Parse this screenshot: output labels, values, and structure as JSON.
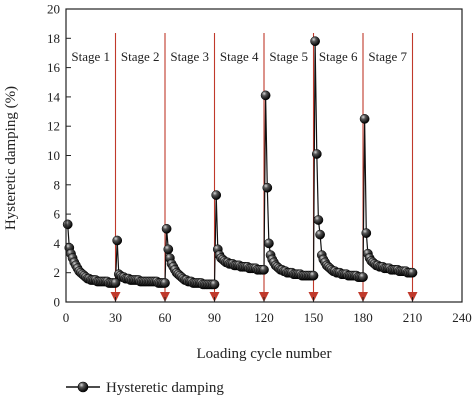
{
  "chart_data": {
    "type": "scatter",
    "xlabel": "Loading cycle number",
    "ylabel": "Hysteretic damping (%)",
    "xlim": [
      0,
      240
    ],
    "ylim": [
      0,
      20
    ],
    "xticks": [
      0,
      30,
      60,
      90,
      120,
      150,
      180,
      210,
      240
    ],
    "yticks": [
      0,
      2,
      4,
      6,
      8,
      10,
      12,
      14,
      16,
      18,
      20
    ],
    "grid": false,
    "legend_position": "bottom-left",
    "colors": {
      "series_fill": "#111111",
      "stage_line": "#c0392b",
      "axes": "#222222"
    },
    "stage_boundaries": [
      30,
      60,
      90,
      120,
      150,
      180,
      210
    ],
    "stages": [
      {
        "label": "Stage 1",
        "x_start": 0,
        "x_end": 30
      },
      {
        "label": "Stage 2",
        "x_start": 30,
        "x_end": 60
      },
      {
        "label": "Stage 3",
        "x_start": 60,
        "x_end": 90
      },
      {
        "label": "Stage 4",
        "x_start": 90,
        "x_end": 120
      },
      {
        "label": "Stage 5",
        "x_start": 120,
        "x_end": 150
      },
      {
        "label": "Stage 6",
        "x_start": 150,
        "x_end": 180
      },
      {
        "label": "Stage 7",
        "x_start": 180,
        "x_end": 210
      }
    ],
    "series": [
      {
        "name": "Hysteretic damping",
        "points": [
          [
            1,
            5.3
          ],
          [
            2,
            3.7
          ],
          [
            3,
            3.3
          ],
          [
            4,
            3.0
          ],
          [
            5,
            2.7
          ],
          [
            6,
            2.5
          ],
          [
            7,
            2.3
          ],
          [
            8,
            2.1
          ],
          [
            9,
            2.0
          ],
          [
            10,
            1.9
          ],
          [
            11,
            1.8
          ],
          [
            12,
            1.7
          ],
          [
            13,
            1.6
          ],
          [
            14,
            1.6
          ],
          [
            15,
            1.5
          ],
          [
            16,
            1.5
          ],
          [
            17,
            1.5
          ],
          [
            18,
            1.5
          ],
          [
            19,
            1.4
          ],
          [
            20,
            1.4
          ],
          [
            21,
            1.4
          ],
          [
            22,
            1.4
          ],
          [
            23,
            1.4
          ],
          [
            24,
            1.4
          ],
          [
            25,
            1.4
          ],
          [
            26,
            1.3
          ],
          [
            27,
            1.3
          ],
          [
            28,
            1.3
          ],
          [
            29,
            1.3
          ],
          [
            30,
            1.3
          ],
          [
            31,
            4.2
          ],
          [
            32,
            1.9
          ],
          [
            33,
            1.8
          ],
          [
            34,
            1.7
          ],
          [
            35,
            1.7
          ],
          [
            36,
            1.6
          ],
          [
            37,
            1.6
          ],
          [
            38,
            1.6
          ],
          [
            39,
            1.5
          ],
          [
            40,
            1.5
          ],
          [
            41,
            1.5
          ],
          [
            42,
            1.5
          ],
          [
            43,
            1.5
          ],
          [
            44,
            1.5
          ],
          [
            45,
            1.4
          ],
          [
            46,
            1.4
          ],
          [
            47,
            1.4
          ],
          [
            48,
            1.4
          ],
          [
            49,
            1.4
          ],
          [
            50,
            1.4
          ],
          [
            51,
            1.4
          ],
          [
            52,
            1.4
          ],
          [
            53,
            1.4
          ],
          [
            54,
            1.4
          ],
          [
            55,
            1.4
          ],
          [
            56,
            1.3
          ],
          [
            57,
            1.3
          ],
          [
            58,
            1.3
          ],
          [
            59,
            1.3
          ],
          [
            60,
            1.3
          ],
          [
            61,
            5.0
          ],
          [
            62,
            3.6
          ],
          [
            63,
            3.0
          ],
          [
            64,
            2.6
          ],
          [
            65,
            2.4
          ],
          [
            66,
            2.2
          ],
          [
            67,
            2.0
          ],
          [
            68,
            1.9
          ],
          [
            69,
            1.8
          ],
          [
            70,
            1.7
          ],
          [
            71,
            1.6
          ],
          [
            72,
            1.5
          ],
          [
            73,
            1.5
          ],
          [
            74,
            1.4
          ],
          [
            75,
            1.4
          ],
          [
            76,
            1.4
          ],
          [
            77,
            1.3
          ],
          [
            78,
            1.3
          ],
          [
            79,
            1.3
          ],
          [
            80,
            1.3
          ],
          [
            81,
            1.3
          ],
          [
            82,
            1.3
          ],
          [
            83,
            1.2
          ],
          [
            84,
            1.2
          ],
          [
            85,
            1.2
          ],
          [
            86,
            1.2
          ],
          [
            87,
            1.2
          ],
          [
            88,
            1.2
          ],
          [
            89,
            1.2
          ],
          [
            90,
            1.2
          ],
          [
            91,
            7.3
          ],
          [
            92,
            3.6
          ],
          [
            93,
            3.2
          ],
          [
            94,
            3.0
          ],
          [
            95,
            2.9
          ],
          [
            96,
            2.8
          ],
          [
            97,
            2.7
          ],
          [
            98,
            2.7
          ],
          [
            99,
            2.6
          ],
          [
            100,
            2.6
          ],
          [
            101,
            2.6
          ],
          [
            102,
            2.5
          ],
          [
            103,
            2.5
          ],
          [
            104,
            2.5
          ],
          [
            105,
            2.5
          ],
          [
            106,
            2.4
          ],
          [
            107,
            2.4
          ],
          [
            108,
            2.4
          ],
          [
            109,
            2.4
          ],
          [
            110,
            2.4
          ],
          [
            111,
            2.3
          ],
          [
            112,
            2.3
          ],
          [
            113,
            2.3
          ],
          [
            114,
            2.3
          ],
          [
            115,
            2.3
          ],
          [
            116,
            2.2
          ],
          [
            117,
            2.2
          ],
          [
            118,
            2.2
          ],
          [
            119,
            2.2
          ],
          [
            120,
            2.2
          ],
          [
            121,
            14.1
          ],
          [
            122,
            7.8
          ],
          [
            123,
            4.0
          ],
          [
            124,
            3.2
          ],
          [
            125,
            2.9
          ],
          [
            126,
            2.7
          ],
          [
            127,
            2.5
          ],
          [
            128,
            2.4
          ],
          [
            129,
            2.3
          ],
          [
            130,
            2.2
          ],
          [
            131,
            2.2
          ],
          [
            132,
            2.1
          ],
          [
            133,
            2.1
          ],
          [
            134,
            2.0
          ],
          [
            135,
            2.0
          ],
          [
            136,
            2.0
          ],
          [
            137,
            2.0
          ],
          [
            138,
            1.9
          ],
          [
            139,
            1.9
          ],
          [
            140,
            1.9
          ],
          [
            141,
            1.9
          ],
          [
            142,
            1.9
          ],
          [
            143,
            1.8
          ],
          [
            144,
            1.8
          ],
          [
            145,
            1.8
          ],
          [
            146,
            1.8
          ],
          [
            147,
            1.8
          ],
          [
            148,
            1.8
          ],
          [
            149,
            1.8
          ],
          [
            150,
            1.8
          ],
          [
            151,
            17.8
          ],
          [
            152,
            10.1
          ],
          [
            153,
            5.6
          ],
          [
            154,
            4.6
          ],
          [
            155,
            3.2
          ],
          [
            156,
            2.9
          ],
          [
            157,
            2.7
          ],
          [
            158,
            2.5
          ],
          [
            159,
            2.4
          ],
          [
            160,
            2.3
          ],
          [
            161,
            2.2
          ],
          [
            162,
            2.1
          ],
          [
            163,
            2.1
          ],
          [
            164,
            2.0
          ],
          [
            165,
            2.0
          ],
          [
            166,
            2.0
          ],
          [
            167,
            1.9
          ],
          [
            168,
            1.9
          ],
          [
            169,
            1.9
          ],
          [
            170,
            1.9
          ],
          [
            171,
            1.8
          ],
          [
            172,
            1.8
          ],
          [
            173,
            1.8
          ],
          [
            174,
            1.8
          ],
          [
            175,
            1.8
          ],
          [
            176,
            1.8
          ],
          [
            177,
            1.7
          ],
          [
            178,
            1.7
          ],
          [
            179,
            1.7
          ],
          [
            180,
            1.7
          ],
          [
            181,
            12.5
          ],
          [
            182,
            4.7
          ],
          [
            183,
            3.3
          ],
          [
            184,
            3.0
          ],
          [
            185,
            2.8
          ],
          [
            186,
            2.7
          ],
          [
            187,
            2.6
          ],
          [
            188,
            2.5
          ],
          [
            189,
            2.5
          ],
          [
            190,
            2.4
          ],
          [
            191,
            2.4
          ],
          [
            192,
            2.4
          ],
          [
            193,
            2.3
          ],
          [
            194,
            2.3
          ],
          [
            195,
            2.3
          ],
          [
            196,
            2.3
          ],
          [
            197,
            2.2
          ],
          [
            198,
            2.2
          ],
          [
            199,
            2.2
          ],
          [
            200,
            2.2
          ],
          [
            201,
            2.2
          ],
          [
            202,
            2.1
          ],
          [
            203,
            2.1
          ],
          [
            204,
            2.1
          ],
          [
            205,
            2.1
          ],
          [
            206,
            2.1
          ],
          [
            207,
            2.0
          ],
          [
            208,
            2.0
          ],
          [
            209,
            2.0
          ],
          [
            210,
            2.0
          ]
        ]
      }
    ]
  }
}
